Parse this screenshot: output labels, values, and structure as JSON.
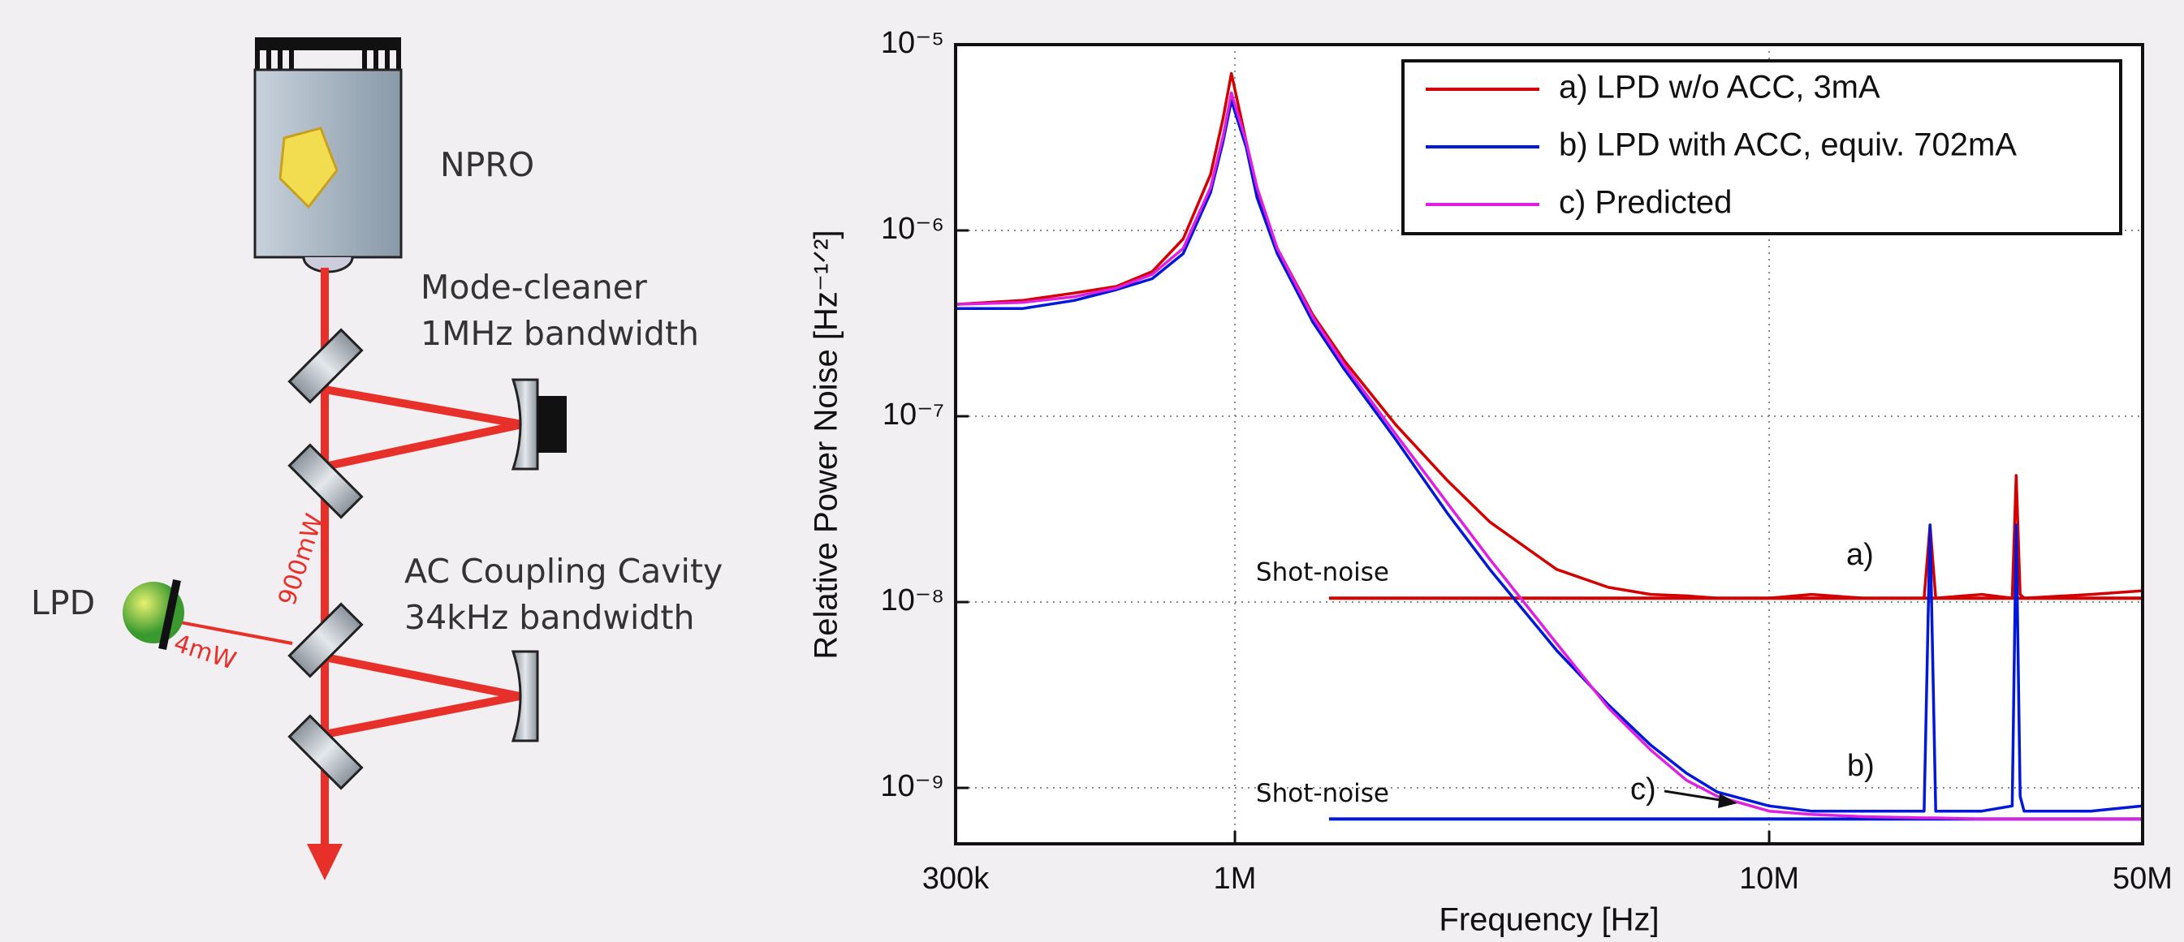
{
  "diagram": {
    "npro": "NPRO",
    "mode_cleaner": [
      "Mode-cleaner",
      "1MHz bandwidth"
    ],
    "acc": [
      "AC Coupling Cavity",
      "34kHz bandwidth"
    ],
    "lpd": "LPD",
    "main_power": "900mW",
    "lpd_power": "4mW"
  },
  "chart_data": {
    "type": "line",
    "xlabel": "Frequency [Hz]",
    "ylabel": "Relative Power Noise [Hz⁻¹ᐟ²]",
    "xscale": "log",
    "yscale": "log",
    "grid": true,
    "legend": "upper right",
    "xlim": [
      300000,
      50000000
    ],
    "ylim": [
      5e-10,
      1e-05
    ],
    "xticks": [
      {
        "value": 300000,
        "label": "300k"
      },
      {
        "value": 1000000,
        "label": "1M"
      },
      {
        "value": 10000000,
        "label": "10M"
      },
      {
        "value": 50000000,
        "label": "50M"
      }
    ],
    "yticks": [
      {
        "value": 1e-09,
        "label": "10⁻⁹"
      },
      {
        "value": 1e-08,
        "label": "10⁻⁸"
      },
      {
        "value": 1e-07,
        "label": "10⁻⁷"
      },
      {
        "value": 1e-06,
        "label": "10⁻⁶"
      },
      {
        "value": 1e-05,
        "label": "10⁻⁵"
      }
    ],
    "x": [
      300000,
      400000,
      500000,
      600000,
      700000,
      800000,
      900000,
      950000,
      985000,
      1050000,
      1100000,
      1200000,
      1400000,
      1600000,
      2000000,
      2500000,
      3000000,
      4000000,
      5000000,
      6000000,
      7000000,
      8000000,
      10000000,
      12000000,
      15000000,
      19500000,
      20000000,
      20500000,
      25000000,
      28500000,
      29000000,
      29500000,
      30000000,
      40000000,
      50000000
    ],
    "series": [
      {
        "name": "a) LPD w/o ACC, 3mA",
        "color": "#d40000",
        "values": [
          4e-07,
          4.2e-07,
          4.6e-07,
          5e-07,
          6e-07,
          9e-07,
          2e-06,
          4e-06,
          7e-06,
          3e-06,
          1.6e-06,
          8e-07,
          3.5e-07,
          2e-07,
          9e-08,
          4.5e-08,
          2.7e-08,
          1.5e-08,
          1.2e-08,
          1.1e-08,
          1.08e-08,
          1.05e-08,
          1.05e-08,
          1.1e-08,
          1.05e-08,
          1.05e-08,
          2.6e-08,
          1.05e-08,
          1.1e-08,
          1.05e-08,
          4.8e-08,
          1.1e-08,
          1.05e-08,
          1.1e-08,
          1.15e-08
        ]
      },
      {
        "name": "b) LPD with ACC, equiv. 702mA",
        "color": "#0018d8",
        "values": [
          3.8e-07,
          3.8e-07,
          4.2e-07,
          4.8e-07,
          5.5e-07,
          7.5e-07,
          1.6e-06,
          3e-06,
          5e-06,
          2.8e-06,
          1.5e-06,
          7.5e-07,
          3.2e-07,
          1.8e-07,
          7.5e-08,
          3e-08,
          1.5e-08,
          5.5e-09,
          2.8e-09,
          1.7e-09,
          1.2e-09,
          9.5e-10,
          8e-10,
          7.5e-10,
          7.5e-10,
          7.5e-10,
          2.6e-08,
          7.5e-10,
          7.5e-10,
          8e-10,
          2.6e-08,
          9e-10,
          7.5e-10,
          7.5e-10,
          8e-10
        ]
      },
      {
        "name": "c) Predicted",
        "color": "#e020e0",
        "values": [
          4e-07,
          4.1e-07,
          4.4e-07,
          4.9e-07,
          5.8e-07,
          8e-07,
          1.7e-06,
          3.2e-06,
          5.5e-06,
          3e-06,
          1.7e-06,
          8e-07,
          3.4e-07,
          1.9e-07,
          8e-08,
          3.4e-08,
          1.7e-08,
          6e-09,
          2.7e-09,
          1.6e-09,
          1.1e-09,
          9e-10,
          7.5e-10,
          7.2e-10,
          7e-10,
          6.9e-10,
          6.9e-10,
          6.9e-10,
          6.8e-10,
          6.8e-10,
          6.8e-10,
          6.8e-10,
          6.8e-10,
          6.8e-10,
          6.8e-10
        ]
      }
    ],
    "reference_lines": [
      {
        "label": "Shot-noise",
        "color": "#d40000",
        "value": 1.05e-08,
        "xrange": [
          1500000,
          50000000
        ]
      },
      {
        "label": "Shot-noise",
        "color": "#0018d8",
        "value": 6.8e-10,
        "xrange": [
          1500000,
          50000000
        ]
      }
    ],
    "annotations": [
      "a)",
      "b)",
      "c)"
    ]
  }
}
